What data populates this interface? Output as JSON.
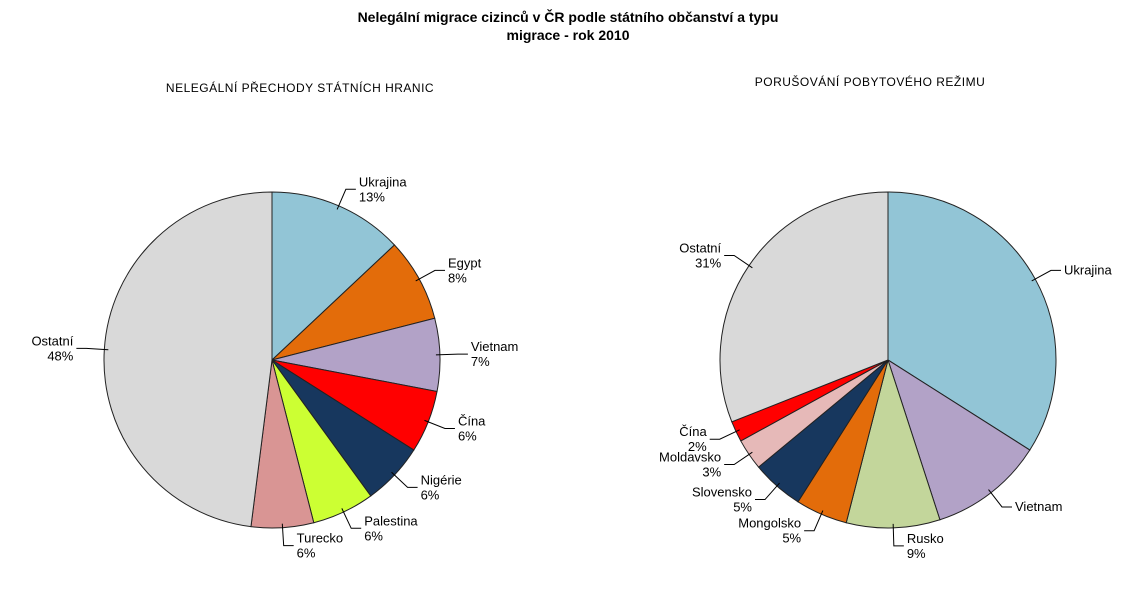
{
  "title": [
    "Nelegální migrace cizinců v ČR podle státního občanství a typu",
    "migrace - rok 2010"
  ],
  "chart_data": [
    {
      "type": "pie",
      "title": "NELEGÁLNÍ PŘECHODY STÁTNÍCH HRANIC",
      "categories": [
        "Ukrajina",
        "Egypt",
        "Vietnam",
        "Čína",
        "Nigérie",
        "Palestina",
        "Turecko",
        "Ostatní"
      ],
      "values": [
        13,
        8,
        7,
        6,
        6,
        6,
        6,
        48
      ],
      "value_labels": [
        "13%",
        "8%",
        "7%",
        "6%",
        "6%",
        "6%",
        "6%",
        "48%"
      ],
      "colors": [
        "#92c5d6",
        "#e36c0a",
        "#b2a2c7",
        "#ff0000",
        "#17375e",
        "#ccff33",
        "#d99594",
        "#d9d9d9"
      ]
    },
    {
      "type": "pie",
      "title": "PORUŠOVÁNÍ POBYTOVÉHO REŽIMU",
      "categories": [
        "Ukrajina",
        "Vietnam",
        "Rusko",
        "Mongolsko",
        "Slovensko",
        "Moldavsko",
        "Čína",
        "Ostatní"
      ],
      "values": [
        34,
        11,
        9,
        5,
        5,
        3,
        2,
        31
      ],
      "value_labels": [
        null,
        null,
        "9%",
        "5%",
        "5%",
        "3%",
        "2%",
        "31%"
      ],
      "colors": [
        "#92c5d6",
        "#b2a2c7",
        "#c3d69b",
        "#e36c0a",
        "#17375e",
        "#e6b9b8",
        "#ff0000",
        "#d9d9d9"
      ]
    }
  ]
}
